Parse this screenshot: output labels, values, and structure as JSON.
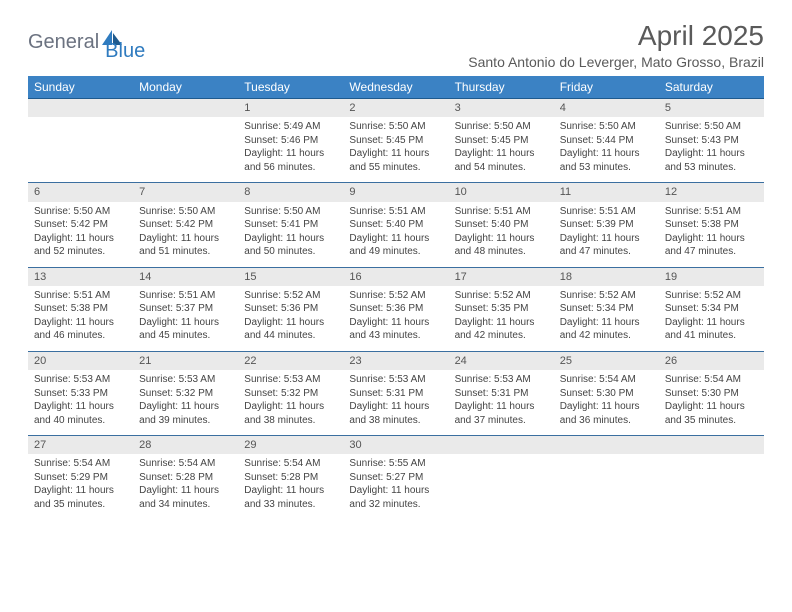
{
  "logo": {
    "part1": "General",
    "part2": "Blue"
  },
  "title": "April 2025",
  "location": "Santo Antonio do Leverger, Mato Grosso, Brazil",
  "colors": {
    "header_bg": "#3b82c4",
    "header_text": "#ffffff",
    "daynum_bg": "#eaeaea",
    "row_border": "#3b6fa0",
    "logo_gray": "#6b7280",
    "logo_blue": "#2f7bbf",
    "body_bg": "#ffffff"
  },
  "dayHeaders": [
    "Sunday",
    "Monday",
    "Tuesday",
    "Wednesday",
    "Thursday",
    "Friday",
    "Saturday"
  ],
  "weeks": [
    {
      "nums": [
        "",
        "",
        "1",
        "2",
        "3",
        "4",
        "5"
      ],
      "cells": [
        null,
        null,
        {
          "sunrise": "Sunrise: 5:49 AM",
          "sunset": "Sunset: 5:46 PM",
          "daylight": "Daylight: 11 hours and 56 minutes."
        },
        {
          "sunrise": "Sunrise: 5:50 AM",
          "sunset": "Sunset: 5:45 PM",
          "daylight": "Daylight: 11 hours and 55 minutes."
        },
        {
          "sunrise": "Sunrise: 5:50 AM",
          "sunset": "Sunset: 5:45 PM",
          "daylight": "Daylight: 11 hours and 54 minutes."
        },
        {
          "sunrise": "Sunrise: 5:50 AM",
          "sunset": "Sunset: 5:44 PM",
          "daylight": "Daylight: 11 hours and 53 minutes."
        },
        {
          "sunrise": "Sunrise: 5:50 AM",
          "sunset": "Sunset: 5:43 PM",
          "daylight": "Daylight: 11 hours and 53 minutes."
        }
      ]
    },
    {
      "nums": [
        "6",
        "7",
        "8",
        "9",
        "10",
        "11",
        "12"
      ],
      "cells": [
        {
          "sunrise": "Sunrise: 5:50 AM",
          "sunset": "Sunset: 5:42 PM",
          "daylight": "Daylight: 11 hours and 52 minutes."
        },
        {
          "sunrise": "Sunrise: 5:50 AM",
          "sunset": "Sunset: 5:42 PM",
          "daylight": "Daylight: 11 hours and 51 minutes."
        },
        {
          "sunrise": "Sunrise: 5:50 AM",
          "sunset": "Sunset: 5:41 PM",
          "daylight": "Daylight: 11 hours and 50 minutes."
        },
        {
          "sunrise": "Sunrise: 5:51 AM",
          "sunset": "Sunset: 5:40 PM",
          "daylight": "Daylight: 11 hours and 49 minutes."
        },
        {
          "sunrise": "Sunrise: 5:51 AM",
          "sunset": "Sunset: 5:40 PM",
          "daylight": "Daylight: 11 hours and 48 minutes."
        },
        {
          "sunrise": "Sunrise: 5:51 AM",
          "sunset": "Sunset: 5:39 PM",
          "daylight": "Daylight: 11 hours and 47 minutes."
        },
        {
          "sunrise": "Sunrise: 5:51 AM",
          "sunset": "Sunset: 5:38 PM",
          "daylight": "Daylight: 11 hours and 47 minutes."
        }
      ]
    },
    {
      "nums": [
        "13",
        "14",
        "15",
        "16",
        "17",
        "18",
        "19"
      ],
      "cells": [
        {
          "sunrise": "Sunrise: 5:51 AM",
          "sunset": "Sunset: 5:38 PM",
          "daylight": "Daylight: 11 hours and 46 minutes."
        },
        {
          "sunrise": "Sunrise: 5:51 AM",
          "sunset": "Sunset: 5:37 PM",
          "daylight": "Daylight: 11 hours and 45 minutes."
        },
        {
          "sunrise": "Sunrise: 5:52 AM",
          "sunset": "Sunset: 5:36 PM",
          "daylight": "Daylight: 11 hours and 44 minutes."
        },
        {
          "sunrise": "Sunrise: 5:52 AM",
          "sunset": "Sunset: 5:36 PM",
          "daylight": "Daylight: 11 hours and 43 minutes."
        },
        {
          "sunrise": "Sunrise: 5:52 AM",
          "sunset": "Sunset: 5:35 PM",
          "daylight": "Daylight: 11 hours and 42 minutes."
        },
        {
          "sunrise": "Sunrise: 5:52 AM",
          "sunset": "Sunset: 5:34 PM",
          "daylight": "Daylight: 11 hours and 42 minutes."
        },
        {
          "sunrise": "Sunrise: 5:52 AM",
          "sunset": "Sunset: 5:34 PM",
          "daylight": "Daylight: 11 hours and 41 minutes."
        }
      ]
    },
    {
      "nums": [
        "20",
        "21",
        "22",
        "23",
        "24",
        "25",
        "26"
      ],
      "cells": [
        {
          "sunrise": "Sunrise: 5:53 AM",
          "sunset": "Sunset: 5:33 PM",
          "daylight": "Daylight: 11 hours and 40 minutes."
        },
        {
          "sunrise": "Sunrise: 5:53 AM",
          "sunset": "Sunset: 5:32 PM",
          "daylight": "Daylight: 11 hours and 39 minutes."
        },
        {
          "sunrise": "Sunrise: 5:53 AM",
          "sunset": "Sunset: 5:32 PM",
          "daylight": "Daylight: 11 hours and 38 minutes."
        },
        {
          "sunrise": "Sunrise: 5:53 AM",
          "sunset": "Sunset: 5:31 PM",
          "daylight": "Daylight: 11 hours and 38 minutes."
        },
        {
          "sunrise": "Sunrise: 5:53 AM",
          "sunset": "Sunset: 5:31 PM",
          "daylight": "Daylight: 11 hours and 37 minutes."
        },
        {
          "sunrise": "Sunrise: 5:54 AM",
          "sunset": "Sunset: 5:30 PM",
          "daylight": "Daylight: 11 hours and 36 minutes."
        },
        {
          "sunrise": "Sunrise: 5:54 AM",
          "sunset": "Sunset: 5:30 PM",
          "daylight": "Daylight: 11 hours and 35 minutes."
        }
      ]
    },
    {
      "nums": [
        "27",
        "28",
        "29",
        "30",
        "",
        "",
        ""
      ],
      "cells": [
        {
          "sunrise": "Sunrise: 5:54 AM",
          "sunset": "Sunset: 5:29 PM",
          "daylight": "Daylight: 11 hours and 35 minutes."
        },
        {
          "sunrise": "Sunrise: 5:54 AM",
          "sunset": "Sunset: 5:28 PM",
          "daylight": "Daylight: 11 hours and 34 minutes."
        },
        {
          "sunrise": "Sunrise: 5:54 AM",
          "sunset": "Sunset: 5:28 PM",
          "daylight": "Daylight: 11 hours and 33 minutes."
        },
        {
          "sunrise": "Sunrise: 5:55 AM",
          "sunset": "Sunset: 5:27 PM",
          "daylight": "Daylight: 11 hours and 32 minutes."
        },
        null,
        null,
        null
      ]
    }
  ]
}
